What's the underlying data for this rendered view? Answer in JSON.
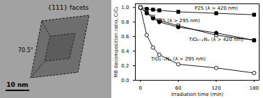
{
  "image": {
    "annotations": [
      "{111} facets",
      "70.5°"
    ],
    "scale_bar": "10 nm"
  },
  "chart_data": {
    "type": "line",
    "x_label": "Irradiation time (min)",
    "y_label": "MB decomposition ratio, C/C₀",
    "x": [
      0,
      10,
      20,
      30,
      60,
      120,
      180
    ],
    "xlim": [
      -8,
      188
    ],
    "xticks": [
      0,
      60,
      120,
      180
    ],
    "ylim": [
      0,
      1.05
    ],
    "yticks": [
      {
        "value": 0,
        "label": "0.0"
      },
      {
        "value": 0.2,
        "label": "0.2"
      },
      {
        "value": 0.4,
        "label": "0.4"
      },
      {
        "value": 0.6,
        "label": "0.6"
      },
      {
        "value": 0.8,
        "label": "0.8"
      },
      {
        "value": 1.0,
        "label": "1.0"
      }
    ],
    "grid": false,
    "series": [
      {
        "name": "P25 (λ > 420 nm)",
        "color": "#000000",
        "marker": "square",
        "line_style": "solid",
        "values": [
          1.0,
          0.98,
          0.97,
          0.96,
          0.94,
          0.92,
          0.9
        ]
      },
      {
        "name": "P25 (λ > 295 nm)",
        "color": "#000000",
        "marker": "open-square",
        "line_style": "solid",
        "values": [
          1.0,
          0.93,
          0.87,
          0.82,
          0.75,
          0.62,
          0.55
        ]
      },
      {
        "name": "TiO₂₋ₓNₓ (λ > 420 nm)",
        "color": "#000000",
        "marker": "circle",
        "line_style": "solid",
        "values": [
          1.0,
          0.92,
          0.85,
          0.8,
          0.73,
          0.65,
          0.55
        ]
      },
      {
        "name": "TiO₂₋ₓNₓ (λ > 295 nm)",
        "color": "#000000",
        "marker": "open-circle",
        "line_style": "solid",
        "values": [
          1.0,
          0.62,
          0.45,
          0.35,
          0.22,
          0.17,
          0.1
        ]
      }
    ]
  }
}
